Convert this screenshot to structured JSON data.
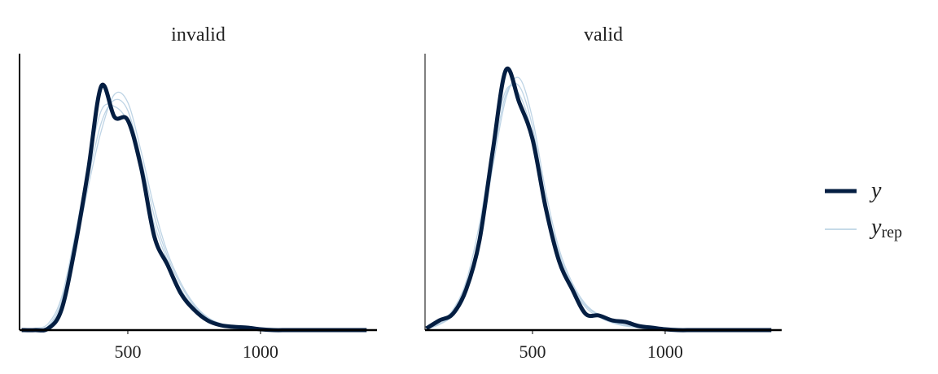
{
  "chart_data": [
    {
      "type": "line",
      "title": "invalid",
      "x": [
        100,
        150,
        200,
        250,
        300,
        350,
        400,
        450,
        500,
        550,
        600,
        650,
        700,
        750,
        800,
        850,
        900,
        950,
        1000,
        1050,
        1100,
        1150,
        1200,
        1250,
        1300,
        1350,
        1400
      ],
      "xlim": [
        92,
        1439
      ],
      "xticks": [
        500,
        1000
      ],
      "ylim": [
        0,
        0.0034
      ],
      "series": [
        {
          "name": "y",
          "color": "#041e42",
          "values": [
            0,
            0,
            2e-05,
            0.00025,
            0.001,
            0.00195,
            0.003,
            0.00262,
            0.00258,
            0.002,
            0.00115,
            0.0008,
            0.00045,
            0.00025,
            0.00012,
            6e-05,
            4e-05,
            3e-05,
            1e-05,
            0,
            0,
            0,
            0,
            0,
            0,
            0,
            0
          ]
        },
        {
          "name": "y",
          "subscript": "rep",
          "color": "#b3cde0",
          "values": [
            0,
            1e-05,
            5e-05,
            0.00035,
            0.00105,
            0.00185,
            0.00255,
            0.00283,
            0.0027,
            0.0021,
            0.0014,
            0.0009,
            0.00055,
            0.0003,
            0.00015,
            7e-05,
            4e-05,
            2e-05,
            1e-05,
            0,
            0,
            0,
            0,
            0,
            0,
            0,
            0
          ]
        },
        {
          "color": "#b3cde0",
          "values": [
            0,
            2e-05,
            8e-05,
            0.0004,
            0.00115,
            0.002,
            0.0027,
            0.00275,
            0.00255,
            0.00195,
            0.0013,
            0.00085,
            0.0005,
            0.00028,
            0.00014,
            6e-05,
            3e-05,
            2e-05,
            1e-05,
            0,
            0,
            0,
            0,
            0,
            0,
            0,
            0
          ]
        },
        {
          "color": "#b3cde0",
          "values": [
            0,
            1e-05,
            4e-05,
            0.0003,
            0.00095,
            0.00175,
            0.00245,
            0.0029,
            0.0028,
            0.0022,
            0.0015,
            0.00095,
            0.00058,
            0.00032,
            0.00016,
            8e-05,
            4e-05,
            2e-05,
            1e-05,
            0,
            0,
            0,
            0,
            0,
            0,
            0,
            0
          ]
        }
      ]
    },
    {
      "type": "line",
      "title": "valid",
      "x": [
        100,
        150,
        200,
        250,
        300,
        350,
        400,
        450,
        500,
        550,
        600,
        650,
        700,
        750,
        800,
        850,
        900,
        950,
        1000,
        1050,
        1100,
        1150,
        1200,
        1250,
        1300,
        1350,
        1400
      ],
      "xlim": [
        95,
        1439
      ],
      "xticks": [
        500,
        1000
      ],
      "ylim": [
        0,
        0.0034
      ],
      "series": [
        {
          "color": "#041e42",
          "values": [
            2e-05,
            0.00012,
            0.0002,
            0.0005,
            0.0011,
            0.0022,
            0.0032,
            0.0028,
            0.00235,
            0.0015,
            0.00085,
            0.0005,
            0.0002,
            0.00018,
            0.00012,
            0.0001,
            5e-05,
            3e-05,
            1e-05,
            0,
            0,
            0,
            0,
            0,
            0,
            0,
            0
          ]
        },
        {
          "color": "#b3cde0",
          "values": [
            2e-05,
            8e-05,
            0.0002,
            0.0005,
            0.00115,
            0.0021,
            0.0029,
            0.003,
            0.0025,
            0.0016,
            0.00095,
            0.00055,
            0.0003,
            0.00018,
            0.0001,
            6e-05,
            3e-05,
            2e-05,
            1e-05,
            0,
            0,
            0,
            0,
            0,
            0,
            0,
            0
          ]
        },
        {
          "color": "#b3cde0",
          "values": [
            2e-05,
            0.0001,
            0.00025,
            0.0006,
            0.0013,
            0.00225,
            0.00295,
            0.0029,
            0.0024,
            0.0015,
            0.0009,
            0.00052,
            0.00028,
            0.00016,
            9e-05,
            5e-05,
            3e-05,
            1e-05,
            1e-05,
            0,
            0,
            0,
            0,
            0,
            0,
            0,
            0
          ]
        },
        {
          "color": "#b3cde0",
          "values": [
            1e-05,
            7e-05,
            0.00018,
            0.00045,
            0.00105,
            0.002,
            0.00285,
            0.0031,
            0.0026,
            0.0017,
            0.001,
            0.00058,
            0.00032,
            0.00019,
            0.00011,
            6e-05,
            3e-05,
            2e-05,
            1e-05,
            0,
            0,
            0,
            0,
            0,
            0,
            0,
            0
          ]
        }
      ]
    }
  ]
}
